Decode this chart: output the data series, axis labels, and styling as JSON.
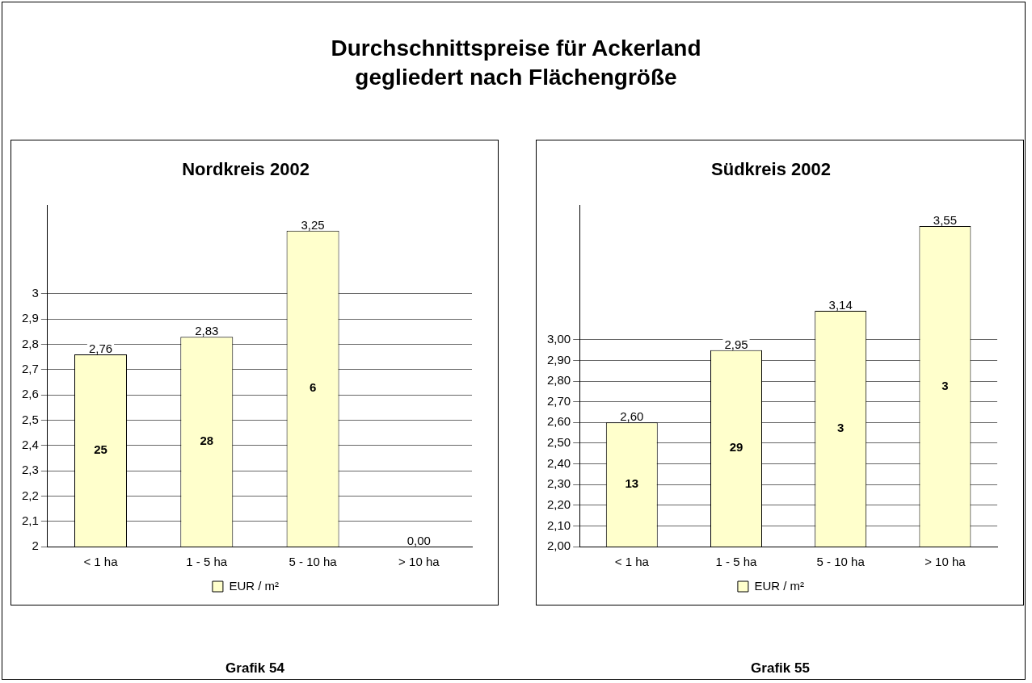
{
  "chart_data": [
    {
      "type": "bar",
      "title": "Nordkreis 2002",
      "categories": [
        "< 1 ha",
        "1 - 5 ha",
        "5 - 10 ha",
        "> 10 ha"
      ],
      "series": [
        {
          "name": "EUR / m²",
          "color": "#ffffcc",
          "values": [
            2.76,
            2.83,
            3.25,
            null
          ],
          "value_labels": [
            "2,76",
            "2,83",
            "3,25",
            "0,00"
          ]
        }
      ],
      "ylim": [
        2,
        3.35
      ],
      "yticks": [
        2,
        {
          "value": 2.1,
          "label": "2,1"
        },
        {
          "value": 2.2,
          "label": "2,2"
        },
        {
          "value": 2.3,
          "label": "2,3"
        },
        {
          "value": 2.4,
          "label": "2,4"
        },
        {
          "value": 2.5,
          "label": "2,5"
        },
        {
          "value": 2.6,
          "label": "2,6"
        },
        {
          "value": 2.7,
          "label": "2,7"
        },
        {
          "value": 2.8,
          "label": "2,8"
        },
        {
          "value": 2.9,
          "label": "2,9"
        },
        3
      ],
      "grid": "y",
      "legend": "bottom",
      "annotations": [
        "Durchschnittspreise für Ackerland\ngegliedert nach Flächengröße",
        "25",
        "28",
        "6",
        "Grafik 54"
      ]
    },
    {
      "type": "bar",
      "title": "Südkreis 2002",
      "categories": [
        "< 1 ha",
        "1 - 5 ha",
        "5 - 10 ha",
        "> 10 ha"
      ],
      "series": [
        {
          "name": "EUR / m²",
          "color": "#ffffcc",
          "values": [
            2.6,
            2.95,
            3.14,
            3.55
          ],
          "value_labels": [
            "2,60",
            "2,95",
            "3,14",
            "3,55"
          ]
        }
      ],
      "ylim": [
        2,
        3.65
      ],
      "yticks": [
        {
          "value": 2,
          "label": "2,00"
        },
        {
          "value": 2.1,
          "label": "2,10"
        },
        {
          "value": 2.2,
          "label": "2,20"
        },
        {
          "value": 2.3,
          "label": "2,30"
        },
        {
          "value": 2.4,
          "label": "2,40"
        },
        {
          "value": 2.5,
          "label": "2,50"
        },
        {
          "value": 2.6,
          "label": "2,60"
        },
        {
          "value": 2.7,
          "label": "2,70"
        },
        {
          "value": 2.8,
          "label": "2,80"
        },
        {
          "value": 2.9,
          "label": "2,90"
        },
        {
          "value": 3,
          "label": "3,00"
        }
      ],
      "grid": "y",
      "legend": "bottom",
      "annotations": [
        "13",
        "29",
        "3",
        "3",
        "Grafik 55"
      ]
    }
  ]
}
